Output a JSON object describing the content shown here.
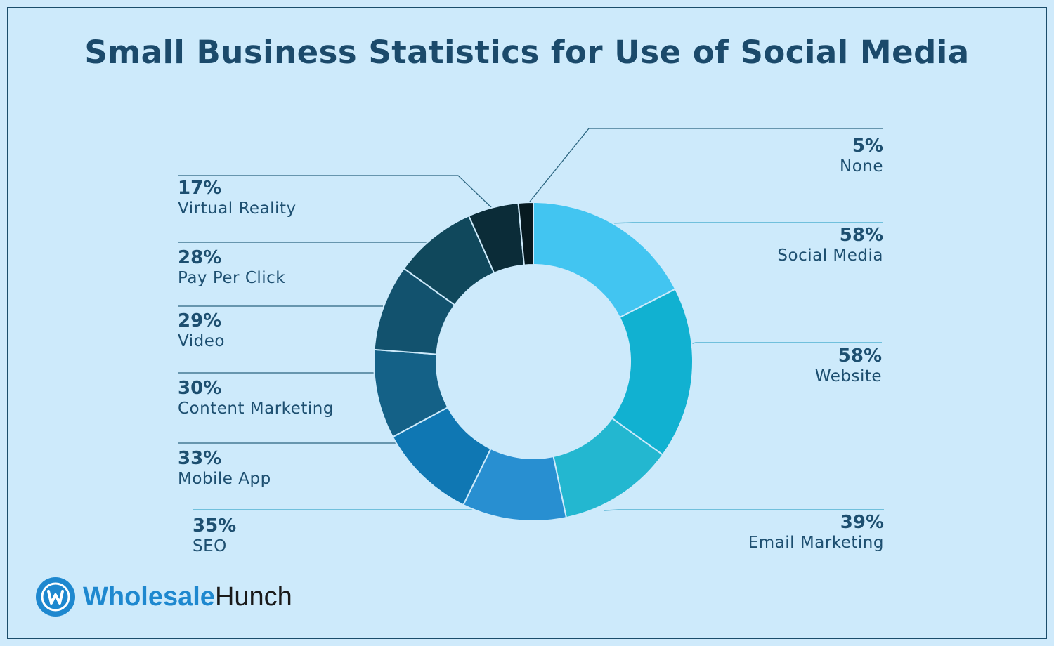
{
  "title": "Small Business Statistics for Use of Social Media",
  "brand": {
    "mark_letter": "W",
    "word_1": "Wholesale",
    "word_2": "Hunch",
    "colors": {
      "primary": "#1e88cf",
      "dark": "#1a1a1a"
    }
  },
  "colors": {
    "background": "#cdeafb",
    "title": "#1b4a6b",
    "label": "#1d4f70"
  },
  "chart_data": {
    "type": "pie",
    "donut": true,
    "slices": [
      {
        "label": "Social Media",
        "value": 58,
        "pct_text": "58%",
        "color": "#42c5f1",
        "side": "right"
      },
      {
        "label": "Website",
        "value": 58,
        "pct_text": "58%",
        "color": "#11b1d1",
        "side": "right"
      },
      {
        "label": "Email Marketing",
        "value": 39,
        "pct_text": "39%",
        "color": "#23b7d0",
        "side": "right"
      },
      {
        "label": "SEO",
        "value": 35,
        "pct_text": "35%",
        "color": "#288fd1",
        "side": "left"
      },
      {
        "label": "Mobile App",
        "value": 33,
        "pct_text": "33%",
        "color": "#0f77b3",
        "side": "left"
      },
      {
        "label": "Content Marketing",
        "value": 30,
        "pct_text": "30%",
        "color": "#146187",
        "side": "left"
      },
      {
        "label": "Video",
        "value": 29,
        "pct_text": "29%",
        "color": "#12526e",
        "side": "left"
      },
      {
        "label": "Pay Per Click",
        "value": 28,
        "pct_text": "28%",
        "color": "#10485c",
        "side": "left"
      },
      {
        "label": "Virtual Reality",
        "value": 17,
        "pct_text": "17%",
        "color": "#0b2c38",
        "side": "left"
      },
      {
        "label": "None",
        "value": 5,
        "pct_text": "5%",
        "color": "#071a20",
        "side": "right"
      }
    ]
  }
}
